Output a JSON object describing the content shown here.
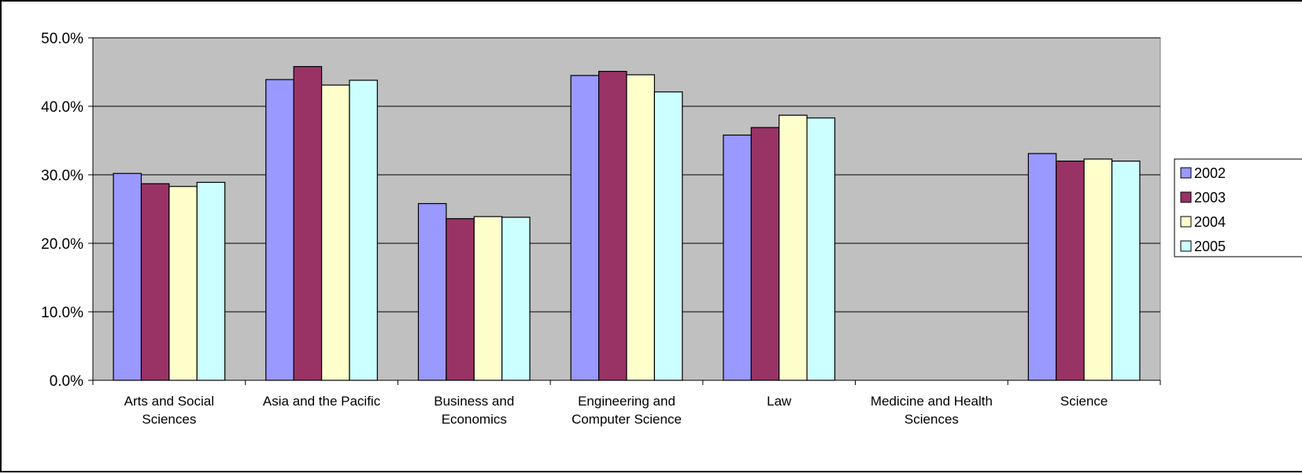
{
  "chart_data": {
    "type": "bar",
    "title": "",
    "xlabel": "",
    "ylabel": "",
    "ylim": [
      0,
      50
    ],
    "y_ticks": [
      "0.0%",
      "10.0%",
      "20.0%",
      "30.0%",
      "40.0%",
      "50.0%"
    ],
    "y_tick_values": [
      0,
      10,
      20,
      30,
      40,
      50
    ],
    "grid": true,
    "legend_position": "right",
    "plot_background": "#C0C0C0",
    "categories": [
      [
        "Arts and Social",
        "Sciences"
      ],
      [
        "Asia and the Pacific"
      ],
      [
        "Business and",
        "Economics"
      ],
      [
        "Engineering and",
        "Computer Science"
      ],
      [
        "Law"
      ],
      [
        "Medicine and Health",
        "Sciences"
      ],
      [
        "Science"
      ]
    ],
    "series": [
      {
        "name": "2002",
        "color": "#9999FF",
        "values": [
          30.2,
          43.9,
          25.8,
          44.5,
          35.8,
          null,
          33.1
        ]
      },
      {
        "name": "2003",
        "color": "#993366",
        "values": [
          28.7,
          45.8,
          23.6,
          45.1,
          36.9,
          null,
          32.0
        ]
      },
      {
        "name": "2004",
        "color": "#FFFFCC",
        "values": [
          28.3,
          43.1,
          23.9,
          44.6,
          38.7,
          null,
          32.3
        ]
      },
      {
        "name": "2005",
        "color": "#CCFFFF",
        "values": [
          28.9,
          43.8,
          23.8,
          42.1,
          38.3,
          null,
          32.0
        ]
      }
    ]
  }
}
